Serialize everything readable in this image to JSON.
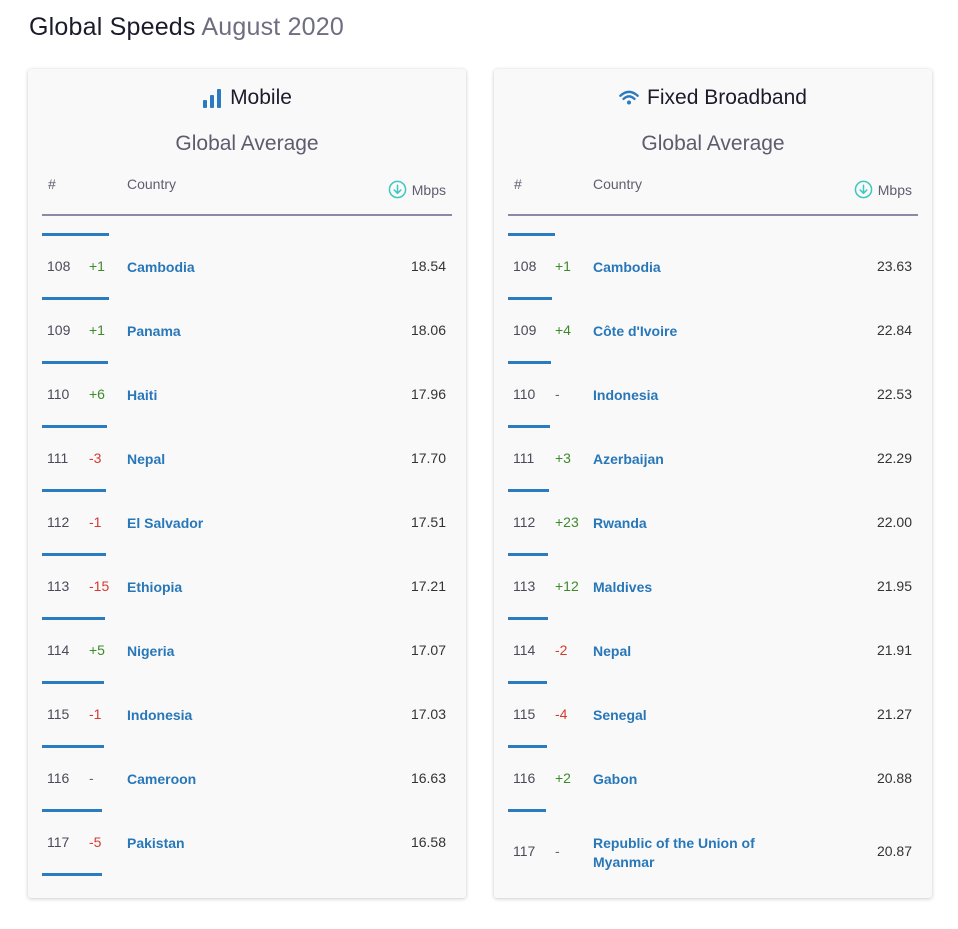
{
  "page": {
    "title_main": "Global Speeds",
    "title_date": "August 2020"
  },
  "mobile": {
    "title": "Mobile",
    "icon": "bar-chart-icon",
    "subtitle": "Global Average",
    "col_rank": "#",
    "col_country": "Country",
    "col_speed": "Mbps",
    "rows": [
      {
        "rank": "108",
        "change": "+1",
        "dir": "up",
        "country": "Cambodia",
        "speed": "18.54"
      },
      {
        "rank": "109",
        "change": "+1",
        "dir": "up",
        "country": "Panama",
        "speed": "18.06"
      },
      {
        "rank": "110",
        "change": "+6",
        "dir": "up",
        "country": "Haiti",
        "speed": "17.96"
      },
      {
        "rank": "111",
        "change": "-3",
        "dir": "down",
        "country": "Nepal",
        "speed": "17.70"
      },
      {
        "rank": "112",
        "change": "-1",
        "dir": "down",
        "country": "El Salvador",
        "speed": "17.51"
      },
      {
        "rank": "113",
        "change": "-15",
        "dir": "down",
        "country": "Ethiopia",
        "speed": "17.21"
      },
      {
        "rank": "114",
        "change": "+5",
        "dir": "up",
        "country": "Nigeria",
        "speed": "17.07"
      },
      {
        "rank": "115",
        "change": "-1",
        "dir": "down",
        "country": "Indonesia",
        "speed": "17.03"
      },
      {
        "rank": "116",
        "change": "-",
        "dir": "same",
        "country": "Cameroon",
        "speed": "16.63"
      },
      {
        "rank": "117",
        "change": "-5",
        "dir": "down",
        "country": "Pakistan",
        "speed": "16.58"
      }
    ]
  },
  "fixed": {
    "title": "Fixed Broadband",
    "icon": "wifi-icon",
    "subtitle": "Global Average",
    "col_rank": "#",
    "col_country": "Country",
    "col_speed": "Mbps",
    "rows": [
      {
        "rank": "108",
        "change": "+1",
        "dir": "up",
        "country": "Cambodia",
        "speed": "23.63"
      },
      {
        "rank": "109",
        "change": "+4",
        "dir": "up",
        "country": "Côte d'Ivoire",
        "speed": "22.84"
      },
      {
        "rank": "110",
        "change": "-",
        "dir": "same",
        "country": "Indonesia",
        "speed": "22.53"
      },
      {
        "rank": "111",
        "change": "+3",
        "dir": "up",
        "country": "Azerbaijan",
        "speed": "22.29"
      },
      {
        "rank": "112",
        "change": "+23",
        "dir": "up",
        "country": "Rwanda",
        "speed": "22.00"
      },
      {
        "rank": "113",
        "change": "+12",
        "dir": "up",
        "country": "Maldives",
        "speed": "21.95"
      },
      {
        "rank": "114",
        "change": "-2",
        "dir": "down",
        "country": "Nepal",
        "speed": "21.91"
      },
      {
        "rank": "115",
        "change": "-4",
        "dir": "down",
        "country": "Senegal",
        "speed": "21.27"
      },
      {
        "rank": "116",
        "change": "+2",
        "dir": "up",
        "country": "Gabon",
        "speed": "20.88"
      },
      {
        "rank": "117",
        "change": "-",
        "dir": "same",
        "country": "Republic of the Union of Myanmar",
        "speed": "20.87"
      }
    ]
  },
  "colors": {
    "accent": "#2b7bbf",
    "up": "#3d8a2a",
    "down": "#d53a2f",
    "download_icon": "#3fc8c0"
  }
}
